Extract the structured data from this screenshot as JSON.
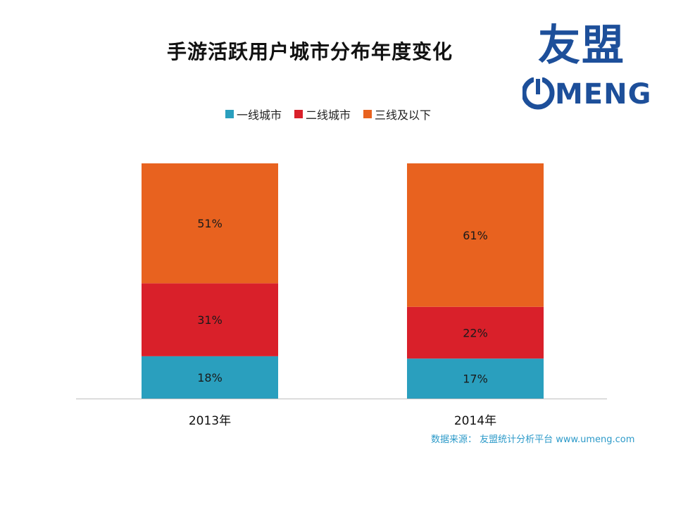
{
  "title": "手游活跃用户城市分布年度变化",
  "logo": {
    "cn": "友盟",
    "en": "MENG"
  },
  "legend": [
    {
      "label": "一线城市",
      "color": "#2a9fbe"
    },
    {
      "label": "二线城市",
      "color": "#d9202a"
    },
    {
      "label": "三线及以下",
      "color": "#e8621f"
    }
  ],
  "source": "数据来源： 友盟统计分析平台 www.umeng.com",
  "chart_data": {
    "type": "bar",
    "stacked": true,
    "categories": [
      "2013年",
      "2014年"
    ],
    "series": [
      {
        "name": "一线城市",
        "values": [
          18,
          17
        ],
        "labels": [
          "18%",
          "17%"
        ],
        "color": "#2a9fbe"
      },
      {
        "name": "二线城市",
        "values": [
          31,
          22
        ],
        "labels": [
          "31%",
          "22%"
        ],
        "color": "#d9202a"
      },
      {
        "name": "三线及以下",
        "values": [
          51,
          61
        ],
        "labels": [
          "51%",
          "61%"
        ],
        "color": "#e8621f"
      }
    ],
    "ylim": [
      0,
      100
    ],
    "title": "手游活跃用户城市分布年度变化",
    "legend_position": "top"
  }
}
